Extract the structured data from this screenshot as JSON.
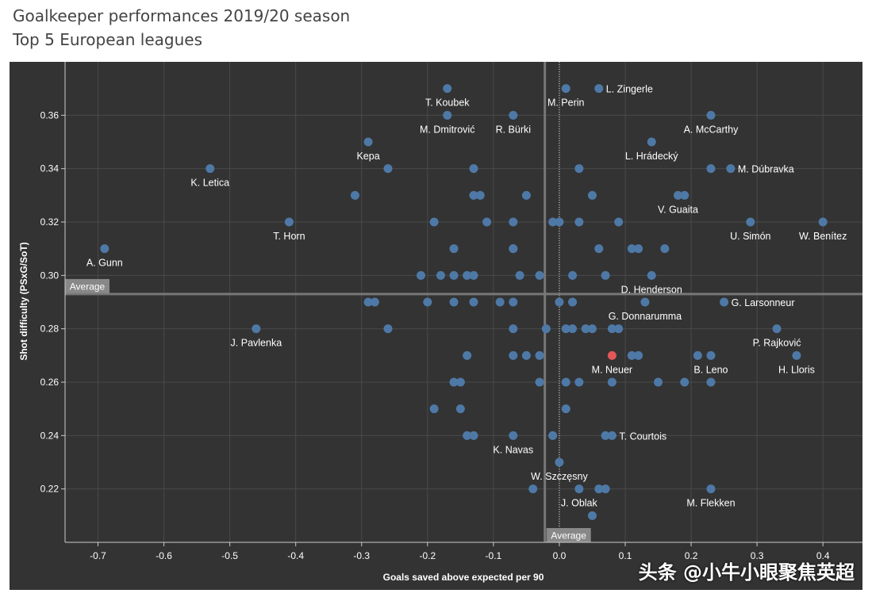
{
  "title": "Goalkeeper performances 2019/20 season",
  "subtitle": "Top 5 European leagues",
  "watermark": "头条 @小牛小眼聚焦英超",
  "colors": {
    "background": "#333333",
    "point": "#4e79a7",
    "highlight": "#e15759",
    "grid": "#4a4a4a",
    "average": "#777777"
  },
  "chart_data": {
    "type": "scatter",
    "title": "Goalkeeper performances 2019/20 season",
    "subtitle": "Top 5 European leagues",
    "xlabel": "Goals saved above expected per 90",
    "ylabel": "Shot difficulty (PSxG/SoT)",
    "xlim": [
      -0.75,
      0.46
    ],
    "ylim": [
      0.2,
      0.38
    ],
    "xticks": [
      "-0.7",
      "-0.6",
      "-0.5",
      "-0.4",
      "-0.3",
      "-0.2",
      "-0.1",
      "0.0",
      "0.1",
      "0.2",
      "0.3",
      "0.4"
    ],
    "yticks": [
      "0.22",
      "0.24",
      "0.26",
      "0.28",
      "0.30",
      "0.32",
      "0.34",
      "0.36"
    ],
    "average": {
      "x": -0.022,
      "y": 0.293,
      "label": "Average"
    },
    "points": [
      {
        "x": -0.17,
        "y": 0.37,
        "name": "T. Koubek"
      },
      {
        "x": 0.01,
        "y": 0.37,
        "name": "M. Perin"
      },
      {
        "x": 0.06,
        "y": 0.37,
        "name": "L. Zingerle"
      },
      {
        "x": -0.17,
        "y": 0.36,
        "name": "M. Dmitrović"
      },
      {
        "x": -0.07,
        "y": 0.36,
        "name": "R. Bürki"
      },
      {
        "x": 0.23,
        "y": 0.36,
        "name": "A. McCarthy"
      },
      {
        "x": -0.29,
        "y": 0.35,
        "name": "Kepa"
      },
      {
        "x": 0.14,
        "y": 0.35,
        "name": "L. Hrádecký"
      },
      {
        "x": -0.53,
        "y": 0.34,
        "name": "K. Letica"
      },
      {
        "x": 0.26,
        "y": 0.34,
        "name": "M. Dúbravka"
      },
      {
        "x": -0.26,
        "y": 0.34
      },
      {
        "x": -0.13,
        "y": 0.34
      },
      {
        "x": 0.03,
        "y": 0.34
      },
      {
        "x": 0.23,
        "y": 0.34
      },
      {
        "x": -0.31,
        "y": 0.33
      },
      {
        "x": -0.13,
        "y": 0.33
      },
      {
        "x": -0.12,
        "y": 0.33
      },
      {
        "x": -0.05,
        "y": 0.33
      },
      {
        "x": 0.05,
        "y": 0.33
      },
      {
        "x": 0.18,
        "y": 0.33,
        "name": "V. Guaita"
      },
      {
        "x": 0.19,
        "y": 0.33
      },
      {
        "x": -0.41,
        "y": 0.32,
        "name": "T. Horn"
      },
      {
        "x": 0.29,
        "y": 0.32,
        "name": "U. Simón"
      },
      {
        "x": 0.4,
        "y": 0.32,
        "name": "W. Benítez"
      },
      {
        "x": -0.19,
        "y": 0.32
      },
      {
        "x": -0.11,
        "y": 0.32
      },
      {
        "x": -0.07,
        "y": 0.32
      },
      {
        "x": -0.01,
        "y": 0.32
      },
      {
        "x": 0.0,
        "y": 0.32
      },
      {
        "x": 0.03,
        "y": 0.32
      },
      {
        "x": 0.09,
        "y": 0.32
      },
      {
        "x": -0.69,
        "y": 0.31,
        "name": "A. Gunn"
      },
      {
        "x": -0.16,
        "y": 0.31
      },
      {
        "x": -0.07,
        "y": 0.31
      },
      {
        "x": -0.07,
        "y": 0.31
      },
      {
        "x": 0.06,
        "y": 0.31
      },
      {
        "x": 0.11,
        "y": 0.31
      },
      {
        "x": 0.12,
        "y": 0.31
      },
      {
        "x": 0.16,
        "y": 0.31
      },
      {
        "x": -0.21,
        "y": 0.3
      },
      {
        "x": -0.18,
        "y": 0.3
      },
      {
        "x": -0.16,
        "y": 0.3
      },
      {
        "x": -0.14,
        "y": 0.3
      },
      {
        "x": -0.13,
        "y": 0.3
      },
      {
        "x": -0.06,
        "y": 0.3
      },
      {
        "x": -0.03,
        "y": 0.3
      },
      {
        "x": 0.02,
        "y": 0.3
      },
      {
        "x": 0.07,
        "y": 0.3
      },
      {
        "x": 0.14,
        "y": 0.3,
        "name": "D. Henderson"
      },
      {
        "x": 0.13,
        "y": 0.29,
        "name": "G. Donnarumma"
      },
      {
        "x": 0.25,
        "y": 0.29,
        "name": "G. Larsonneur"
      },
      {
        "x": -0.29,
        "y": 0.29
      },
      {
        "x": -0.28,
        "y": 0.29
      },
      {
        "x": -0.2,
        "y": 0.29
      },
      {
        "x": -0.16,
        "y": 0.29
      },
      {
        "x": -0.13,
        "y": 0.29
      },
      {
        "x": -0.09,
        "y": 0.29
      },
      {
        "x": -0.07,
        "y": 0.29
      },
      {
        "x": 0.0,
        "y": 0.29
      },
      {
        "x": 0.02,
        "y": 0.29
      },
      {
        "x": -0.46,
        "y": 0.28,
        "name": "J. Pavlenka"
      },
      {
        "x": 0.33,
        "y": 0.28,
        "name": "P. Rajković"
      },
      {
        "x": -0.26,
        "y": 0.28
      },
      {
        "x": -0.07,
        "y": 0.28
      },
      {
        "x": -0.02,
        "y": 0.28
      },
      {
        "x": 0.01,
        "y": 0.28
      },
      {
        "x": 0.02,
        "y": 0.28
      },
      {
        "x": 0.04,
        "y": 0.28
      },
      {
        "x": 0.05,
        "y": 0.28
      },
      {
        "x": 0.08,
        "y": 0.28
      },
      {
        "x": 0.09,
        "y": 0.28
      },
      {
        "x": 0.08,
        "y": 0.27,
        "name": "M. Neuer",
        "highlight": true
      },
      {
        "x": 0.23,
        "y": 0.27,
        "name": "B. Leno"
      },
      {
        "x": 0.36,
        "y": 0.27,
        "name": "H. Lloris"
      },
      {
        "x": -0.14,
        "y": 0.27
      },
      {
        "x": -0.07,
        "y": 0.27
      },
      {
        "x": -0.05,
        "y": 0.27
      },
      {
        "x": -0.03,
        "y": 0.27
      },
      {
        "x": 0.11,
        "y": 0.27
      },
      {
        "x": 0.12,
        "y": 0.27
      },
      {
        "x": 0.21,
        "y": 0.27
      },
      {
        "x": -0.16,
        "y": 0.26
      },
      {
        "x": -0.15,
        "y": 0.26
      },
      {
        "x": -0.03,
        "y": 0.26
      },
      {
        "x": 0.01,
        "y": 0.26
      },
      {
        "x": 0.03,
        "y": 0.26
      },
      {
        "x": 0.08,
        "y": 0.26
      },
      {
        "x": 0.15,
        "y": 0.26
      },
      {
        "x": 0.19,
        "y": 0.26
      },
      {
        "x": 0.23,
        "y": 0.26
      },
      {
        "x": -0.19,
        "y": 0.25
      },
      {
        "x": -0.15,
        "y": 0.25
      },
      {
        "x": 0.01,
        "y": 0.25
      },
      {
        "x": 0.08,
        "y": 0.24,
        "name": "T. Courtois"
      },
      {
        "x": -0.07,
        "y": 0.24,
        "name": "K. Navas"
      },
      {
        "x": -0.14,
        "y": 0.24
      },
      {
        "x": -0.13,
        "y": 0.24
      },
      {
        "x": -0.01,
        "y": 0.24
      },
      {
        "x": 0.07,
        "y": 0.24
      },
      {
        "x": 0.0,
        "y": 0.23,
        "name": "W. Szczęsny"
      },
      {
        "x": 0.03,
        "y": 0.22,
        "name": "J. Oblak"
      },
      {
        "x": 0.23,
        "y": 0.22,
        "name": "M. Flekken"
      },
      {
        "x": -0.04,
        "y": 0.22
      },
      {
        "x": 0.06,
        "y": 0.22
      },
      {
        "x": 0.07,
        "y": 0.22
      },
      {
        "x": 0.05,
        "y": 0.21
      }
    ]
  }
}
